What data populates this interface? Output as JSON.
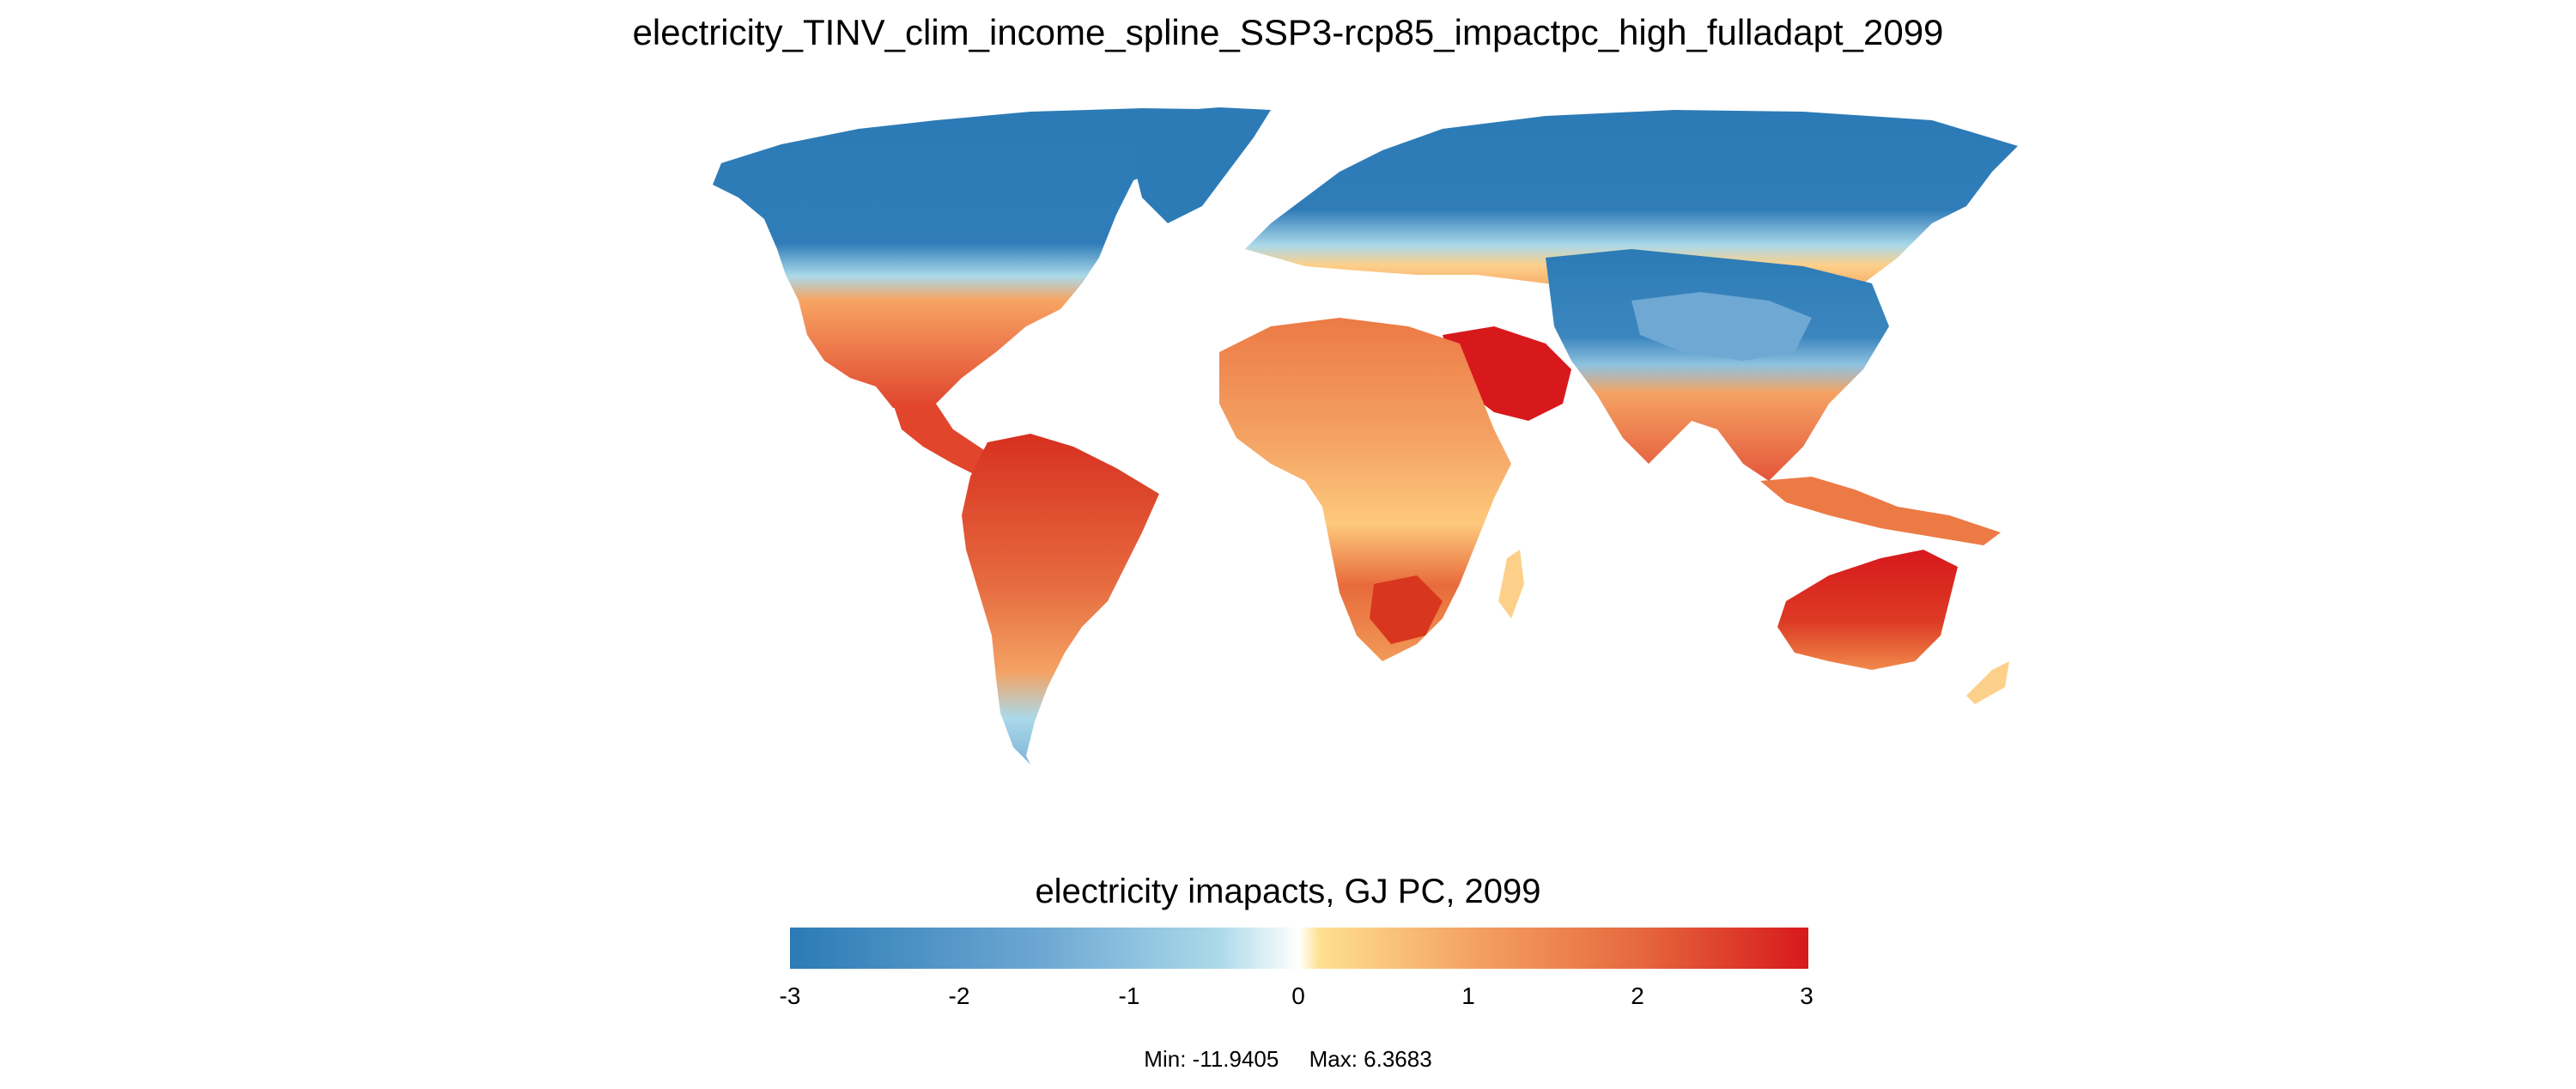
{
  "title": "electricity_TINV_clim_income_spline_SSP3-rcp85_impactpc_high_fulladapt_2099",
  "legend": {
    "title": "electricity imapacts, GJ PC, 2099",
    "ticks": [
      "-3",
      "-2",
      "-1",
      "0",
      "1",
      "2",
      "3"
    ],
    "range": [
      -3,
      3
    ],
    "colors": {
      "cold_strong": "#2c7bb6",
      "cold_mid": "#6ea8d3",
      "cold_light": "#abd9e9",
      "neutral": "#ffffff",
      "warm_light": "#fee090",
      "warm_mid": "#f08a4b",
      "warm_strong": "#d7191c"
    }
  },
  "stats": {
    "min": "Min: -11.9405",
    "max": "Max: 6.3683"
  },
  "map_regions": [
    {
      "name": "north-america-north",
      "value": -3
    },
    {
      "name": "north-america-south",
      "value": 1.6
    },
    {
      "name": "central-america",
      "value": 2.0
    },
    {
      "name": "south-america",
      "value": 2.0
    },
    {
      "name": "patagonia",
      "value": -0.4
    },
    {
      "name": "greenland",
      "value": -3
    },
    {
      "name": "europe",
      "value": 0.4
    },
    {
      "name": "russia",
      "value": -3
    },
    {
      "name": "central-asia",
      "value": 0.8
    },
    {
      "name": "tibet-mongolia",
      "value": -1.5
    },
    {
      "name": "china",
      "value": 1.4
    },
    {
      "name": "middle-east",
      "value": 3
    },
    {
      "name": "north-africa",
      "value": 1.6
    },
    {
      "name": "central-africa",
      "value": 1.2
    },
    {
      "name": "southern-africa",
      "value": 1.5
    },
    {
      "name": "india",
      "value": 1.4
    },
    {
      "name": "southeast-asia",
      "value": 2.3
    },
    {
      "name": "indonesia",
      "value": 1.8
    },
    {
      "name": "australia",
      "value": 3
    },
    {
      "name": "madagascar",
      "value": 0.5
    },
    {
      "name": "new-zealand",
      "value": 0.4
    }
  ]
}
